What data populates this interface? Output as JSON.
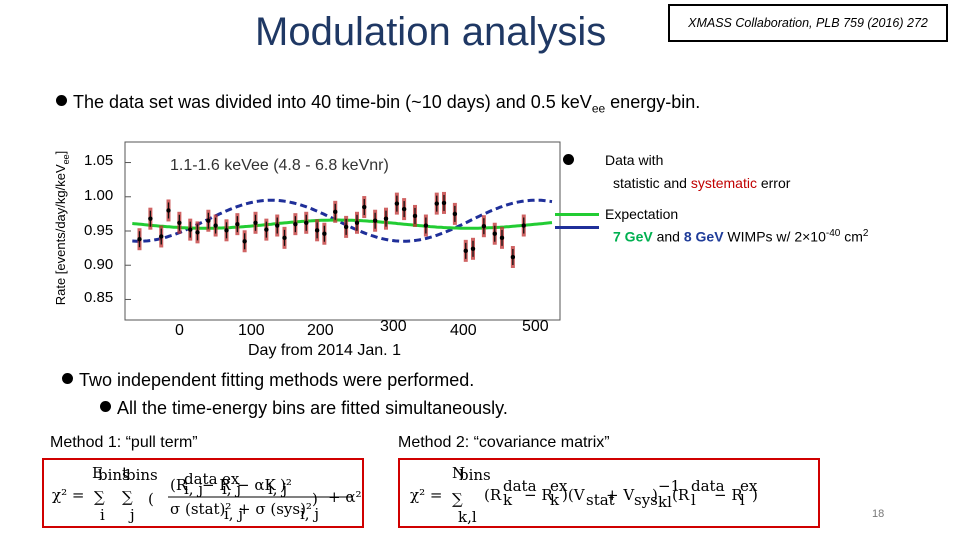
{
  "title": "Modulation analysis",
  "citation": "XMASS Collaboration, PLB 759 (2016) 272",
  "bullet1": {
    "main": "The data set was divided into 40 time-bin (~10 days)  and 0.5 keV",
    "sub": "ee",
    "tail": " energy-bin."
  },
  "bullet2": "Two independent fitting methods were performed.",
  "bullet3": "All the time-energy bins are fitted simultaneously.",
  "method1": {
    "label": "Method 1: “pull term”"
  },
  "method2": {
    "label": "Method 2: “covariance matrix”"
  },
  "page_number": "18",
  "legend": {
    "data_line1": "Data with",
    "data_stat": "statistic",
    "data_and": " and ",
    "data_sys": "systematic",
    "data_err": " error",
    "exp_line1": "Expectation",
    "exp_7": "7 GeV",
    "exp_and": " and ",
    "exp_8": "8 GeV",
    "exp_tail": " WIMPs w/ 2×10",
    "exp_pow": "-40",
    "exp_unit": " cm",
    "exp_sq": "2"
  },
  "colors": {
    "title": "#1f3864",
    "green": "#22cc33",
    "blue": "#1f2f99",
    "red": "#c00000",
    "frame": "#d00000"
  },
  "chart_data": {
    "type": "scatter",
    "title": "1.1-1.6 keVee (4.8 - 6.8 keVnr)",
    "xlabel": "Day from 2014 Jan. 1",
    "ylabel": "Rate [events/day/kg/keVee]",
    "ylabel_main": "Rate [events/day/kg/keV",
    "ylabel_sub": "ee",
    "ylabel_end": "]",
    "xlim": [
      -50,
      550
    ],
    "ylim": [
      0.82,
      1.08
    ],
    "xticks": [
      "0",
      "100",
      "200",
      "300",
      "400",
      "500"
    ],
    "yticks": [
      "1.05",
      "1.00",
      "0.95",
      "0.90",
      "0.85"
    ],
    "series": [
      {
        "name": "Data",
        "x": [
          -30,
          -15,
          0,
          10,
          25,
          40,
          50,
          65,
          75,
          90,
          105,
          115,
          130,
          145,
          160,
          170,
          185,
          200,
          215,
          225,
          240,
          255,
          270,
          280,
          295,
          310,
          325,
          335,
          350,
          365,
          380,
          390,
          405,
          420,
          430,
          445,
          460,
          470,
          485,
          500
        ],
        "y": [
          0.938,
          0.968,
          0.942,
          0.98,
          0.962,
          0.952,
          0.948,
          0.965,
          0.958,
          0.951,
          0.96,
          0.935,
          0.962,
          0.952,
          0.958,
          0.94,
          0.96,
          0.962,
          0.951,
          0.946,
          0.978,
          0.956,
          0.962,
          0.985,
          0.965,
          0.968,
          0.99,
          0.982,
          0.972,
          0.958,
          0.99,
          0.991,
          0.975,
          0.921,
          0.924,
          0.957,
          0.946,
          0.94,
          0.912,
          0.958
        ]
      },
      {
        "name": "7 GeV WIMP expectation",
        "model": "0.96 + 0.006*sin(2*pi*(x-152)/365)"
      },
      {
        "name": "8 GeV WIMP expectation",
        "model": "0.965 + 0.03*cos(2*pi*(x-152)/365)"
      }
    ]
  }
}
